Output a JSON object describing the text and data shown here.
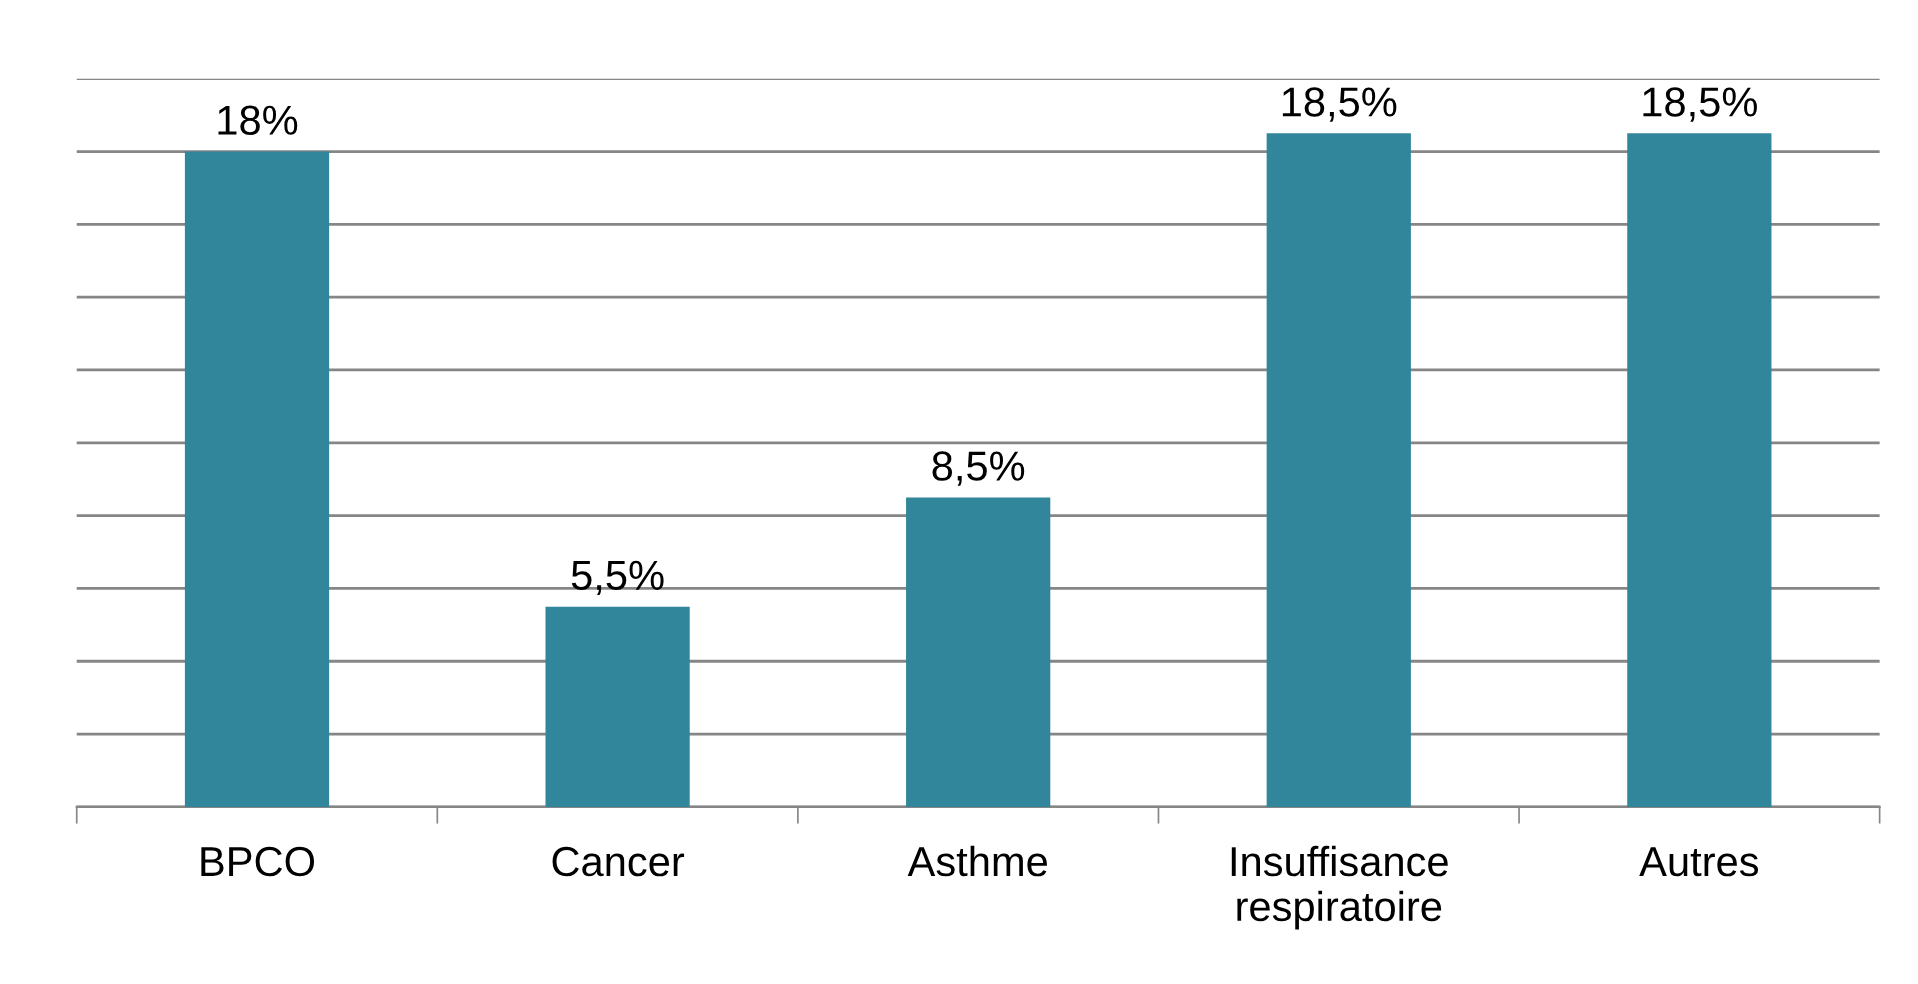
{
  "chart_data": {
    "type": "bar",
    "categories": [
      "BPCO",
      "Cancer",
      "Asthme",
      "Insuffisance\nrespiratoire",
      "Autres"
    ],
    "values": [
      18,
      5.5,
      8.5,
      18.5,
      18.5
    ],
    "color": "#31869b",
    "value_labels": [
      "18%",
      "5,5%",
      "8,5%",
      "18,5%",
      "18,5%"
    ],
    "ylim": [
      0,
      20
    ],
    "yticks": [
      {
        "value": 0,
        "label": null
      },
      {
        "value": 2,
        "label": null
      },
      {
        "value": 4,
        "label": null
      },
      {
        "value": 6,
        "label": null
      },
      {
        "value": 8,
        "label": null
      },
      {
        "value": 10,
        "label": null
      },
      {
        "value": 12,
        "label": null
      },
      {
        "value": 14,
        "label": null
      },
      {
        "value": 16,
        "label": null
      },
      {
        "value": 18,
        "label": null
      },
      {
        "value": 20,
        "label": null
      }
    ],
    "grid": "y",
    "tick_labels": "x",
    "legend": false
  }
}
